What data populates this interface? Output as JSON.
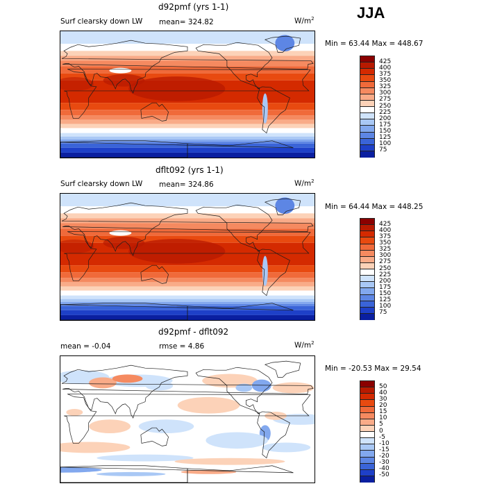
{
  "season": "JJA",
  "panels": [
    {
      "title": "d92pmf (yrs 1-1)",
      "subtitle": "Surf clearsky down LW",
      "stat1": "mean=  324.82",
      "stat2": "",
      "units_base": "W/m",
      "units_exp": "2",
      "minmax": "Min =   63.44 Max =  448.67",
      "levels": [
        "425",
        "400",
        "375",
        "350",
        "325",
        "300",
        "275",
        "250",
        "225",
        "200",
        "175",
        "150",
        "125",
        "100",
        "75"
      ],
      "colors": [
        "#8b0000",
        "#b81a00",
        "#d42a00",
        "#e84a10",
        "#f06a3a",
        "#f58a60",
        "#f9ab88",
        "#fcd2b8",
        "#ffffff",
        "#cfe3fb",
        "#a9c8f5",
        "#82a8ee",
        "#5d86e4",
        "#3a64d8",
        "#1e40c8",
        "#0a1fa0"
      ]
    },
    {
      "title": "dflt092 (yrs 1-1)",
      "subtitle": "Surf clearsky down LW",
      "stat1": "mean=  324.86",
      "stat2": "",
      "units_base": "W/m",
      "units_exp": "2",
      "minmax": "Min =   64.44 Max =  448.25",
      "levels": [
        "425",
        "400",
        "375",
        "350",
        "325",
        "300",
        "275",
        "250",
        "225",
        "200",
        "175",
        "150",
        "125",
        "100",
        "75"
      ],
      "colors": [
        "#8b0000",
        "#b81a00",
        "#d42a00",
        "#e84a10",
        "#f06a3a",
        "#f58a60",
        "#f9ab88",
        "#fcd2b8",
        "#ffffff",
        "#cfe3fb",
        "#a9c8f5",
        "#82a8ee",
        "#5d86e4",
        "#3a64d8",
        "#1e40c8",
        "#0a1fa0"
      ]
    },
    {
      "title": "d92pmf - dflt092",
      "subtitle": "",
      "stat1": "mean =   -0.04",
      "stat2": "rmse =    4.86",
      "units_base": "W/m",
      "units_exp": "2",
      "minmax": "Min = -20.53 Max =   29.54",
      "levels": [
        "50",
        "40",
        "30",
        "20",
        "15",
        "10",
        "5",
        "0",
        "-5",
        "-10",
        "-15",
        "-20",
        "-30",
        "-40",
        "-50"
      ],
      "colors": [
        "#8b0000",
        "#b81a00",
        "#d42a00",
        "#e84a10",
        "#f06a3a",
        "#f58a60",
        "#f9ab88",
        "#fcd2b8",
        "#ffffff",
        "#cfe3fb",
        "#a9c8f5",
        "#82a8ee",
        "#5d86e4",
        "#3a64d8",
        "#1e40c8",
        "#0a1fa0"
      ]
    }
  ],
  "chart_data": [
    {
      "type": "heatmap",
      "title": "d92pmf (yrs 1-1)",
      "variable": "Surf clearsky down LW",
      "units": "W/m2",
      "mean": 324.82,
      "min": 63.44,
      "max": 448.67,
      "contour_levels": [
        75,
        100,
        125,
        150,
        175,
        200,
        225,
        250,
        275,
        300,
        325,
        350,
        375,
        400,
        425
      ]
    },
    {
      "type": "heatmap",
      "title": "dflt092 (yrs 1-1)",
      "variable": "Surf clearsky down LW",
      "units": "W/m2",
      "mean": 324.86,
      "min": 64.44,
      "max": 448.25,
      "contour_levels": [
        75,
        100,
        125,
        150,
        175,
        200,
        225,
        250,
        275,
        300,
        325,
        350,
        375,
        400,
        425
      ]
    },
    {
      "type": "heatmap",
      "title": "d92pmf - dflt092",
      "units": "W/m2",
      "mean": -0.04,
      "rmse": 4.86,
      "min": -20.53,
      "max": 29.54,
      "contour_levels": [
        -50,
        -40,
        -30,
        -20,
        -15,
        -10,
        -5,
        0,
        5,
        10,
        15,
        20,
        30,
        40,
        50
      ]
    }
  ]
}
